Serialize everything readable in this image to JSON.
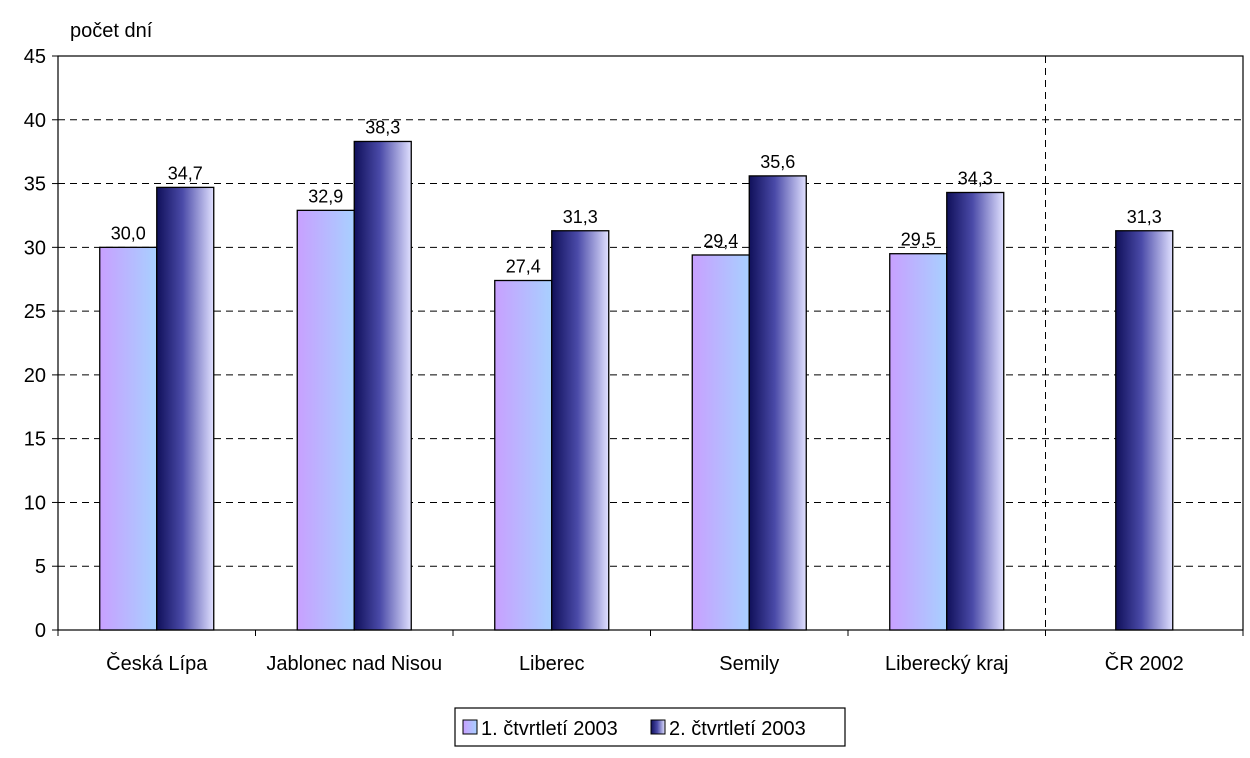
{
  "chart_data": {
    "type": "bar",
    "ylabel": "počet dní",
    "xlabel": "",
    "ylim": [
      0,
      45
    ],
    "yticks": [
      0,
      5,
      10,
      15,
      20,
      25,
      30,
      35,
      40,
      45
    ],
    "grid": true,
    "legend_position": "bottom",
    "categories": [
      "Česká Lípa",
      "Jablonec nad Nisou",
      "Liberec",
      "Semily",
      "Liberecký kraj",
      "ČR 2002"
    ],
    "series": [
      {
        "name": "1. čtvrtletí 2003",
        "values": [
          30.0,
          32.9,
          27.4,
          29.4,
          29.5,
          null
        ],
        "labels": [
          "30,0",
          "32,9",
          "27,4",
          "29,4",
          "29,5",
          ""
        ],
        "color_light": "#c8a8ff",
        "color_dark": "#a9c8ff"
      },
      {
        "name": "2. čtvrtletí 2003",
        "values": [
          34.7,
          38.3,
          31.3,
          35.6,
          34.3,
          31.3
        ],
        "labels": [
          "34,7",
          "38,3",
          "31,3",
          "35,6",
          "34,3",
          "31,3"
        ],
        "color_light": "#c8c8ff",
        "color_dark": "#1a1a6e"
      }
    ]
  }
}
